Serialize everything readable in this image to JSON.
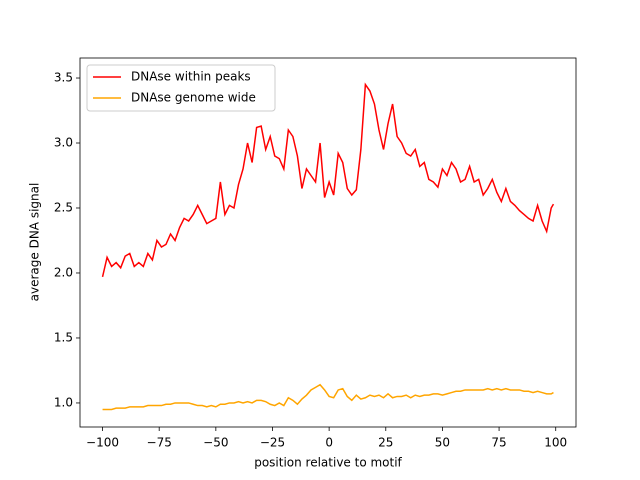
{
  "chart_data": {
    "type": "line",
    "xlabel": "position relative to motif",
    "ylabel": "average DNA signal",
    "x": [
      -100,
      -98,
      -96,
      -94,
      -92,
      -90,
      -88,
      -86,
      -84,
      -82,
      -80,
      -78,
      -76,
      -74,
      -72,
      -70,
      -68,
      -66,
      -64,
      -62,
      -60,
      -58,
      -56,
      -54,
      -52,
      -50,
      -48,
      -46,
      -44,
      -42,
      -40,
      -38,
      -36,
      -34,
      -32,
      -30,
      -28,
      -26,
      -24,
      -22,
      -20,
      -18,
      -16,
      -14,
      -12,
      -10,
      -8,
      -6,
      -4,
      -2,
      0,
      2,
      4,
      6,
      8,
      10,
      12,
      14,
      16,
      18,
      20,
      22,
      24,
      26,
      28,
      30,
      32,
      34,
      36,
      38,
      40,
      42,
      44,
      46,
      48,
      50,
      52,
      54,
      56,
      58,
      60,
      62,
      64,
      66,
      68,
      70,
      72,
      74,
      76,
      78,
      80,
      82,
      84,
      86,
      88,
      90,
      92,
      94,
      96,
      98,
      99
    ],
    "series": [
      {
        "name": "DNAse within peaks",
        "color": "#ff0000",
        "values": [
          1.97,
          2.12,
          2.05,
          2.08,
          2.04,
          2.13,
          2.15,
          2.05,
          2.08,
          2.05,
          2.15,
          2.1,
          2.25,
          2.2,
          2.22,
          2.3,
          2.25,
          2.35,
          2.42,
          2.4,
          2.45,
          2.52,
          2.45,
          2.38,
          2.4,
          2.42,
          2.7,
          2.45,
          2.52,
          2.5,
          2.68,
          2.8,
          3.0,
          2.85,
          3.12,
          3.13,
          2.95,
          3.05,
          2.9,
          2.88,
          2.8,
          3.1,
          3.05,
          2.9,
          2.65,
          2.8,
          2.75,
          2.7,
          3.0,
          2.58,
          2.7,
          2.6,
          2.92,
          2.85,
          2.65,
          2.6,
          2.64,
          2.95,
          3.45,
          3.4,
          3.3,
          3.1,
          2.95,
          3.15,
          3.3,
          3.05,
          3.0,
          2.92,
          2.9,
          2.95,
          2.82,
          2.85,
          2.72,
          2.7,
          2.66,
          2.8,
          2.75,
          2.85,
          2.8,
          2.7,
          2.72,
          2.82,
          2.7,
          2.72,
          2.6,
          2.65,
          2.72,
          2.62,
          2.55,
          2.65,
          2.55,
          2.52,
          2.48,
          2.45,
          2.42,
          2.4,
          2.52,
          2.4,
          2.32,
          2.5,
          2.53
        ]
      },
      {
        "name": "DNAse genome wide",
        "color": "#ffa500",
        "values": [
          0.95,
          0.95,
          0.95,
          0.96,
          0.96,
          0.96,
          0.97,
          0.97,
          0.97,
          0.97,
          0.98,
          0.98,
          0.98,
          0.98,
          0.99,
          0.99,
          1.0,
          1.0,
          1.0,
          1.0,
          0.99,
          0.98,
          0.98,
          0.97,
          0.98,
          0.97,
          0.99,
          0.99,
          1.0,
          1.0,
          1.01,
          1.0,
          1.01,
          1.0,
          1.02,
          1.02,
          1.01,
          0.99,
          0.98,
          1.0,
          0.98,
          1.04,
          1.02,
          0.99,
          1.03,
          1.06,
          1.1,
          1.12,
          1.14,
          1.1,
          1.05,
          1.04,
          1.1,
          1.11,
          1.05,
          1.02,
          1.06,
          1.03,
          1.04,
          1.06,
          1.05,
          1.06,
          1.04,
          1.07,
          1.04,
          1.05,
          1.05,
          1.06,
          1.04,
          1.06,
          1.05,
          1.06,
          1.06,
          1.07,
          1.07,
          1.06,
          1.07,
          1.08,
          1.09,
          1.09,
          1.1,
          1.1,
          1.1,
          1.1,
          1.1,
          1.11,
          1.1,
          1.11,
          1.1,
          1.11,
          1.1,
          1.1,
          1.1,
          1.09,
          1.09,
          1.08,
          1.09,
          1.08,
          1.07,
          1.07,
          1.08
        ]
      }
    ],
    "xlim": [
      -109.95,
      108.95
    ],
    "xticks": [
      {
        "value": -100,
        "label": "−100"
      },
      {
        "value": -75,
        "label": "−75"
      },
      {
        "value": -50,
        "label": "−50"
      },
      {
        "value": -25,
        "label": "−25"
      },
      0,
      25,
      50,
      75,
      100
    ],
    "ylim": [
      0.815,
      3.654
    ],
    "yticks": [
      {
        "value": 1,
        "label": "1.0"
      },
      1.5,
      {
        "value": 2,
        "label": "2.0"
      },
      2.5,
      {
        "value": 3,
        "label": "3.0"
      },
      3.5
    ],
    "legend": "upper left",
    "grid": false
  }
}
